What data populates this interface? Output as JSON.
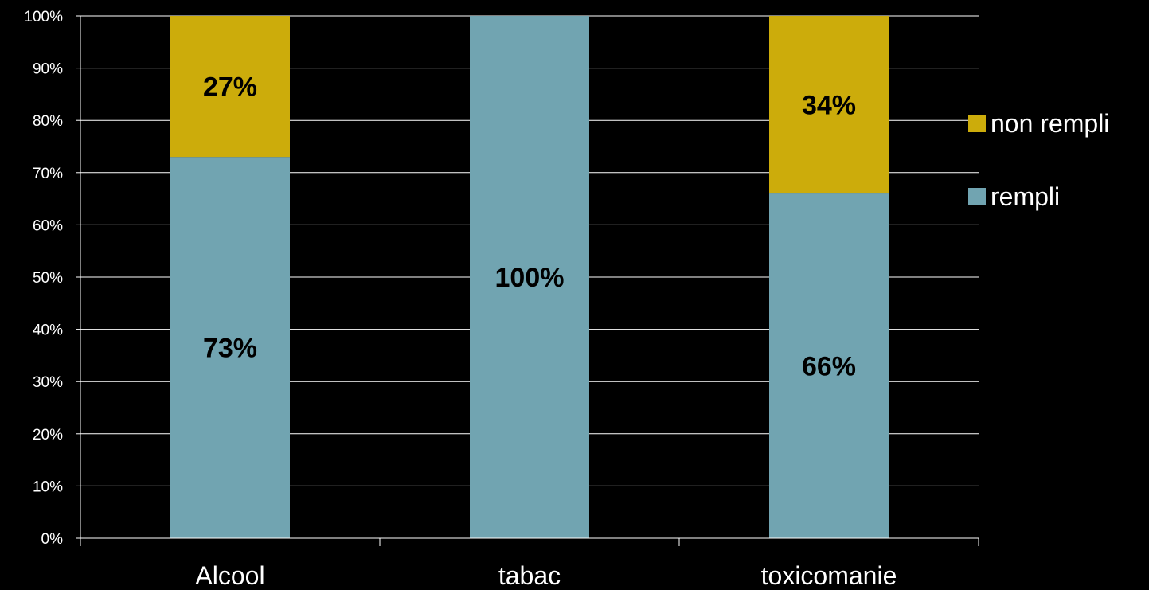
{
  "chart_data": {
    "type": "bar",
    "stacked": true,
    "normalized_percent": true,
    "categories": [
      "Alcool",
      "tabac",
      "toxicomanie"
    ],
    "series": [
      {
        "name": "rempli",
        "values": [
          73,
          100,
          66
        ],
        "labels": [
          "73%",
          "100%",
          "66%"
        ],
        "color": "#71a4b1"
      },
      {
        "name": "non rempli",
        "values": [
          27,
          0,
          34
        ],
        "labels": [
          "27%",
          "",
          "34%"
        ],
        "color": "#ccac0b"
      }
    ],
    "ylim": [
      0,
      100
    ],
    "yticks": [
      "0%",
      "10%",
      "20%",
      "30%",
      "40%",
      "50%",
      "60%",
      "70%",
      "80%",
      "90%",
      "100%"
    ],
    "grid": true,
    "legend": {
      "placement": "right",
      "entries": [
        {
          "label": "non rempli",
          "color": "#ccac0b"
        },
        {
          "label": "rempli",
          "color": "#71a4b1"
        }
      ]
    },
    "colors": {
      "background": "#000000",
      "gridline": "#ffffff",
      "axis_text": "#ffffff",
      "data_label": "#000000"
    }
  }
}
